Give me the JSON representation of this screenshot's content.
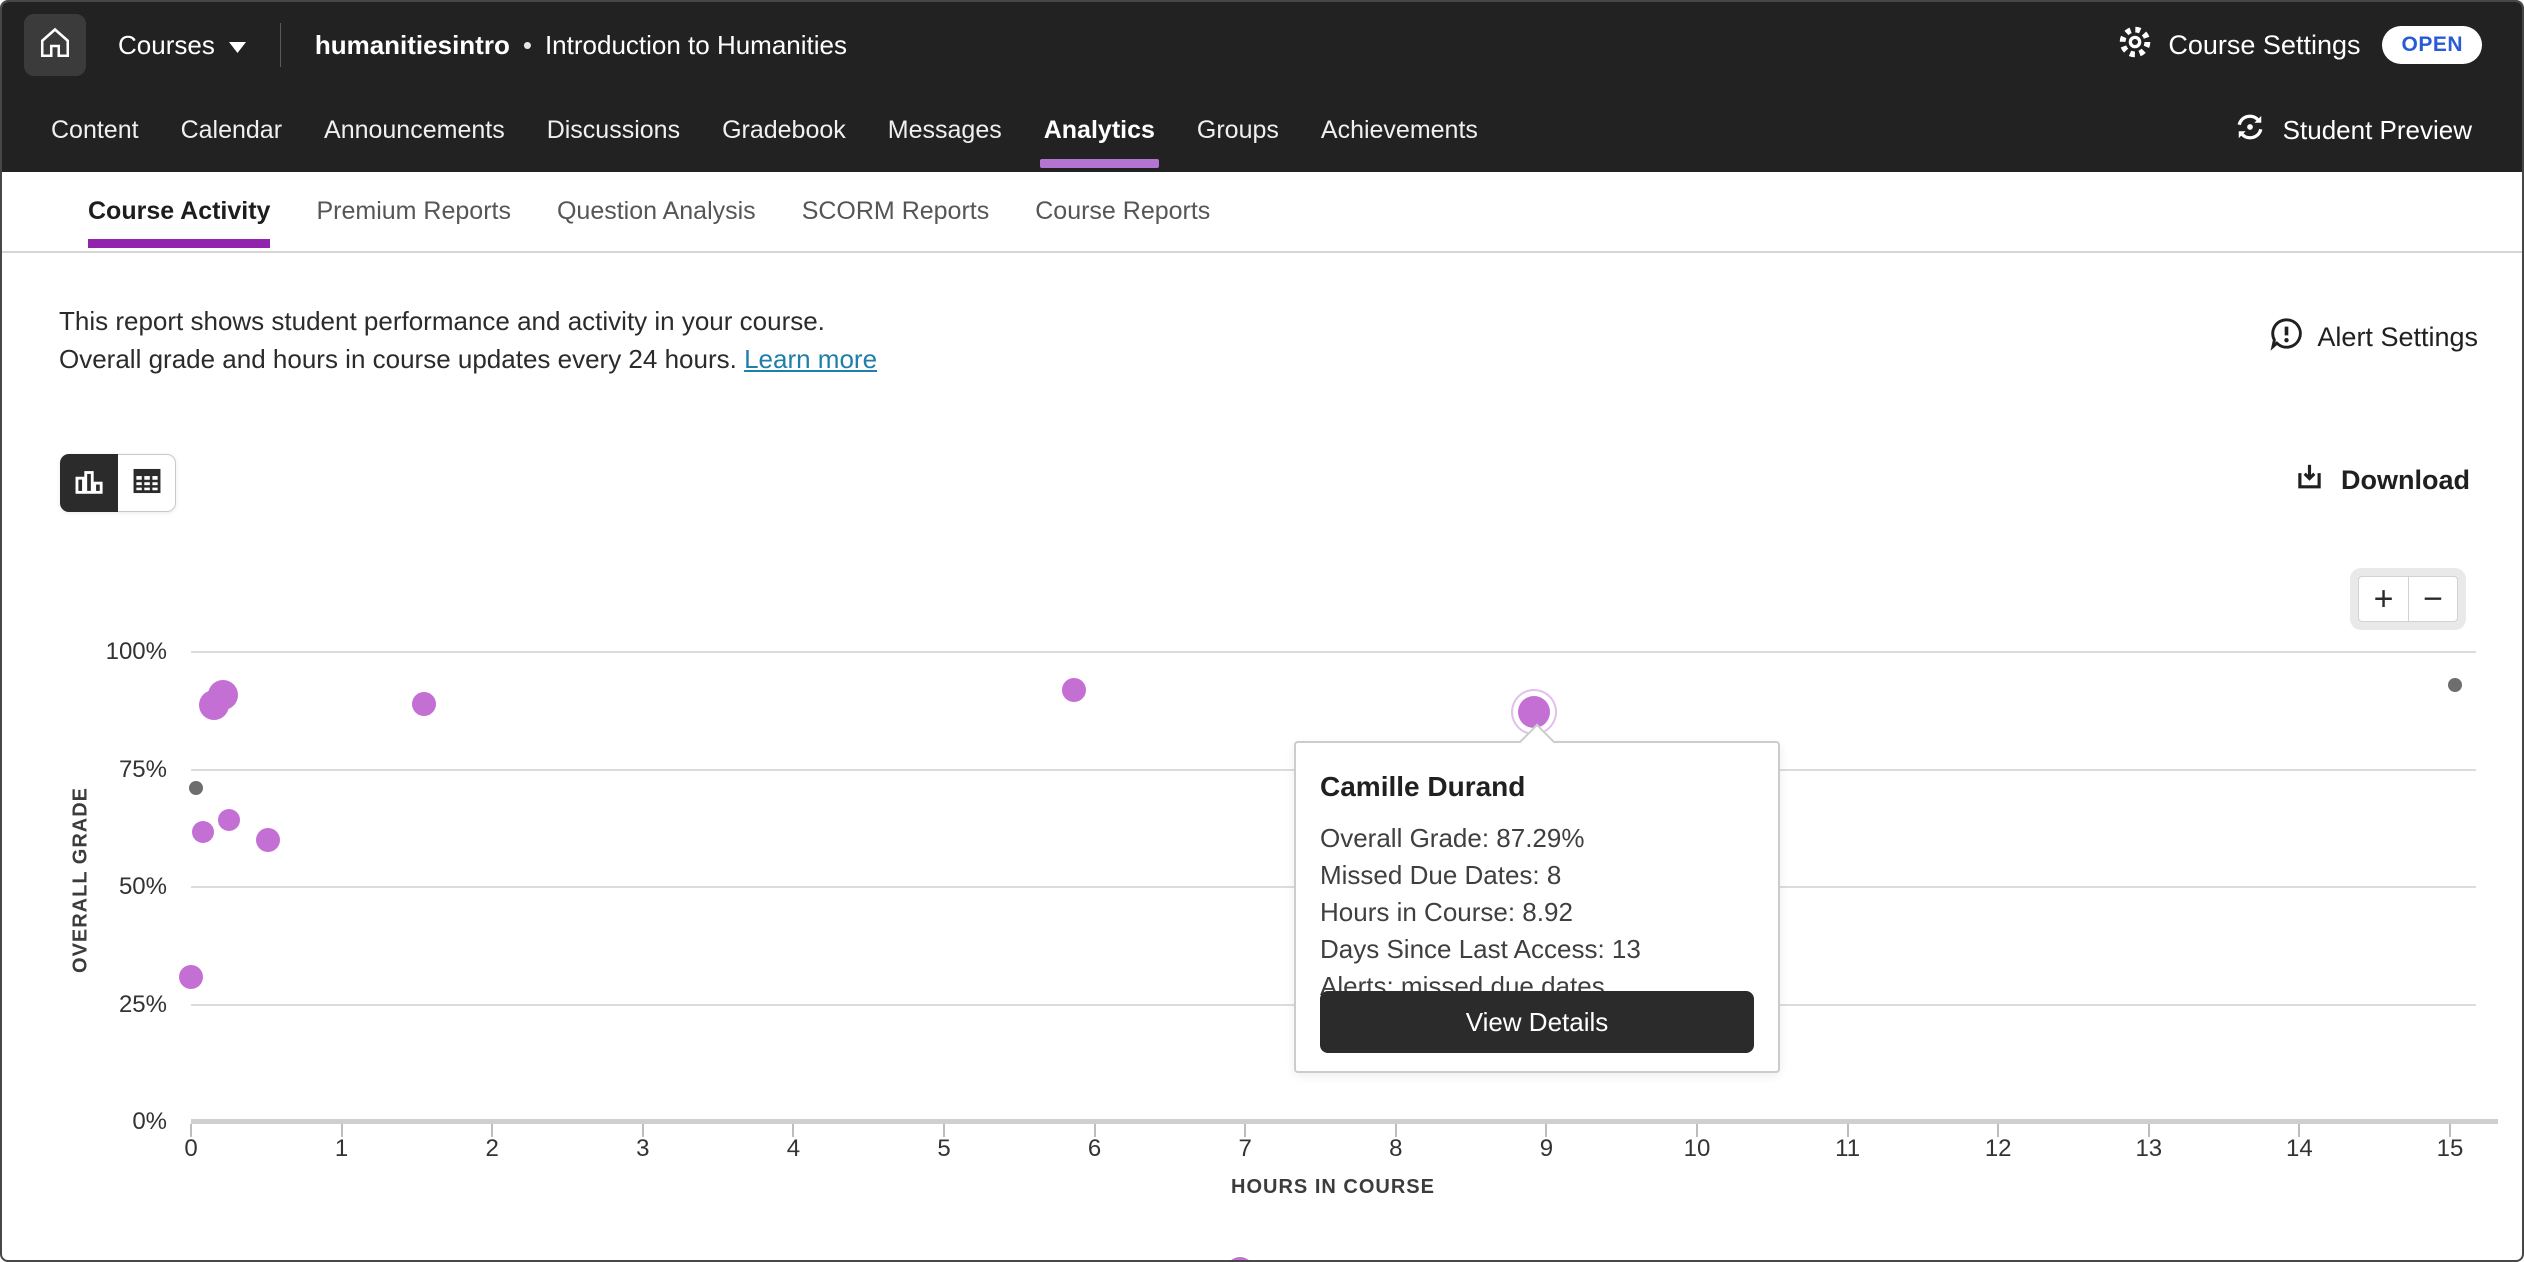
{
  "topbar": {
    "courses_label": "Courses",
    "breadcrumb_code": "humanitiesintro",
    "breadcrumb_sep": "•",
    "breadcrumb_title": "Introduction to Humanities",
    "course_settings_label": "Course Settings",
    "open_badge": "OPEN",
    "open_badge_color": "#2a5bd7"
  },
  "nav": {
    "active_underline_color": "#b674d2",
    "tabs": [
      {
        "label": "Content",
        "active": false
      },
      {
        "label": "Calendar",
        "active": false
      },
      {
        "label": "Announcements",
        "active": false
      },
      {
        "label": "Discussions",
        "active": false
      },
      {
        "label": "Gradebook",
        "active": false
      },
      {
        "label": "Messages",
        "active": false
      },
      {
        "label": "Analytics",
        "active": true
      },
      {
        "label": "Groups",
        "active": false
      },
      {
        "label": "Achievements",
        "active": false
      }
    ],
    "student_preview_label": "Student Preview"
  },
  "subnav": {
    "active_underline_color": "#9123ad",
    "tabs": [
      {
        "label": "Course Activity",
        "active": true
      },
      {
        "label": "Premium Reports",
        "active": false
      },
      {
        "label": "Question Analysis",
        "active": false
      },
      {
        "label": "SCORM Reports",
        "active": false
      },
      {
        "label": "Course Reports",
        "active": false
      }
    ]
  },
  "intro": {
    "line1": "This report shows student performance and activity in your course.",
    "line2": "Overall grade and hours in course updates every 24 hours.",
    "learn_more_label": "Learn more",
    "link_color": "#1f7eaa",
    "alert_settings_label": "Alert Settings"
  },
  "toolbar": {
    "download_label": "Download"
  },
  "zoom_controls": {
    "zoom_in_label": "+",
    "zoom_out_label": "−"
  },
  "chart_data": {
    "type": "scatter",
    "xlabel": "HOURS IN COURSE",
    "ylabel": "OVERALL GRADE",
    "xlim": [
      0,
      15
    ],
    "ylim_pct": [
      0,
      100
    ],
    "grid": true,
    "x_ticks": [
      0,
      1,
      2,
      3,
      4,
      5,
      6,
      7,
      8,
      9,
      10,
      11,
      12,
      13,
      14,
      15
    ],
    "y_ticks": [
      {
        "pct": 100,
        "label": "100%"
      },
      {
        "pct": 75,
        "label": "75%"
      },
      {
        "pct": 50,
        "label": "50%"
      },
      {
        "pct": 25,
        "label": "25%"
      },
      {
        "pct": 0,
        "label": "0%"
      }
    ],
    "point_color": "#c46fd4",
    "muted_point_color": "#6e6e6e",
    "points": [
      {
        "hours": 0.15,
        "grade": 88.7,
        "radius": 15,
        "muted": false,
        "selected": false
      },
      {
        "hours": 0.21,
        "grade": 90.9,
        "radius": 15,
        "muted": false,
        "selected": false
      },
      {
        "hours": 1.55,
        "grade": 88.9,
        "radius": 12,
        "muted": false,
        "selected": false
      },
      {
        "hours": 5.86,
        "grade": 91.9,
        "radius": 12,
        "muted": false,
        "selected": false
      },
      {
        "hours": 8.92,
        "grade": 87.29,
        "radius": 16,
        "muted": false,
        "selected": true,
        "student": "Camille Durand"
      },
      {
        "hours": 15.03,
        "grade": 92.9,
        "radius": 7,
        "muted": true,
        "selected": false
      },
      {
        "hours": 0.03,
        "grade": 71.1,
        "radius": 7,
        "muted": true,
        "selected": false
      },
      {
        "hours": 0.08,
        "grade": 61.7,
        "radius": 11,
        "muted": false,
        "selected": false
      },
      {
        "hours": 0.25,
        "grade": 64.3,
        "radius": 11,
        "muted": false,
        "selected": false
      },
      {
        "hours": 0.51,
        "grade": 60.0,
        "radius": 12,
        "muted": false,
        "selected": false
      },
      {
        "hours": 0.0,
        "grade": 30.9,
        "radius": 12,
        "muted": false,
        "selected": false
      }
    ],
    "partial_bottom_point": {
      "color": "#c46fd4"
    }
  },
  "tooltip": {
    "student_name": "Camille Durand",
    "lines": [
      "Overall Grade: 87.29%",
      "Missed Due Dates: 8",
      "Hours in Course: 8.92",
      "Days Since Last Access: 13",
      "Alerts: missed due dates"
    ],
    "button_label": "View Details"
  }
}
